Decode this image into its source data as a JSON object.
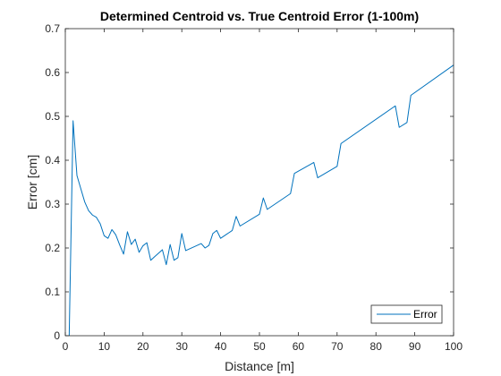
{
  "chart_data": {
    "type": "line",
    "title": "Determined Centroid vs. True Centroid Error (1-100m)",
    "xlabel": "Distance [m]",
    "ylabel": "Error [cm]",
    "xlim": [
      0,
      100
    ],
    "ylim": [
      0,
      0.7
    ],
    "xticks": [
      "0",
      "10",
      "20",
      "30",
      "40",
      "50",
      "60",
      "70",
      "80",
      "90",
      "100"
    ],
    "yticks": [
      "0",
      "0.1",
      "0.2",
      "0.3",
      "0.4",
      "0.5",
      "0.6",
      "0.7"
    ],
    "grid": false,
    "legend_position": "bottom-right",
    "series": [
      {
        "name": "Error",
        "color": "#0072BD",
        "x": [
          1,
          2,
          3,
          4,
          5,
          6,
          7,
          8,
          9,
          10,
          11,
          12,
          13,
          14,
          15,
          16,
          17,
          18,
          19,
          20,
          21,
          22,
          23,
          24,
          25,
          26,
          27,
          28,
          29,
          30,
          31,
          35,
          36,
          37,
          38,
          39,
          40,
          43,
          44,
          45,
          50,
          51,
          52,
          58,
          59,
          63,
          64,
          65,
          70,
          71,
          85,
          86,
          88,
          89,
          100
        ],
        "y": [
          0,
          0.49,
          0.365,
          0.335,
          0.305,
          0.285,
          0.275,
          0.27,
          0.255,
          0.228,
          0.222,
          0.242,
          0.23,
          0.207,
          0.186,
          0.237,
          0.208,
          0.22,
          0.19,
          0.205,
          0.212,
          0.172,
          0.18,
          0.188,
          0.196,
          0.162,
          0.208,
          0.172,
          0.178,
          0.233,
          0.194,
          0.21,
          0.2,
          0.206,
          0.233,
          0.24,
          0.222,
          0.24,
          0.272,
          0.25,
          0.277,
          0.314,
          0.288,
          0.324,
          0.37,
          0.39,
          0.395,
          0.36,
          0.386,
          0.438,
          0.524,
          0.475,
          0.486,
          0.548,
          0.617
        ]
      }
    ]
  }
}
